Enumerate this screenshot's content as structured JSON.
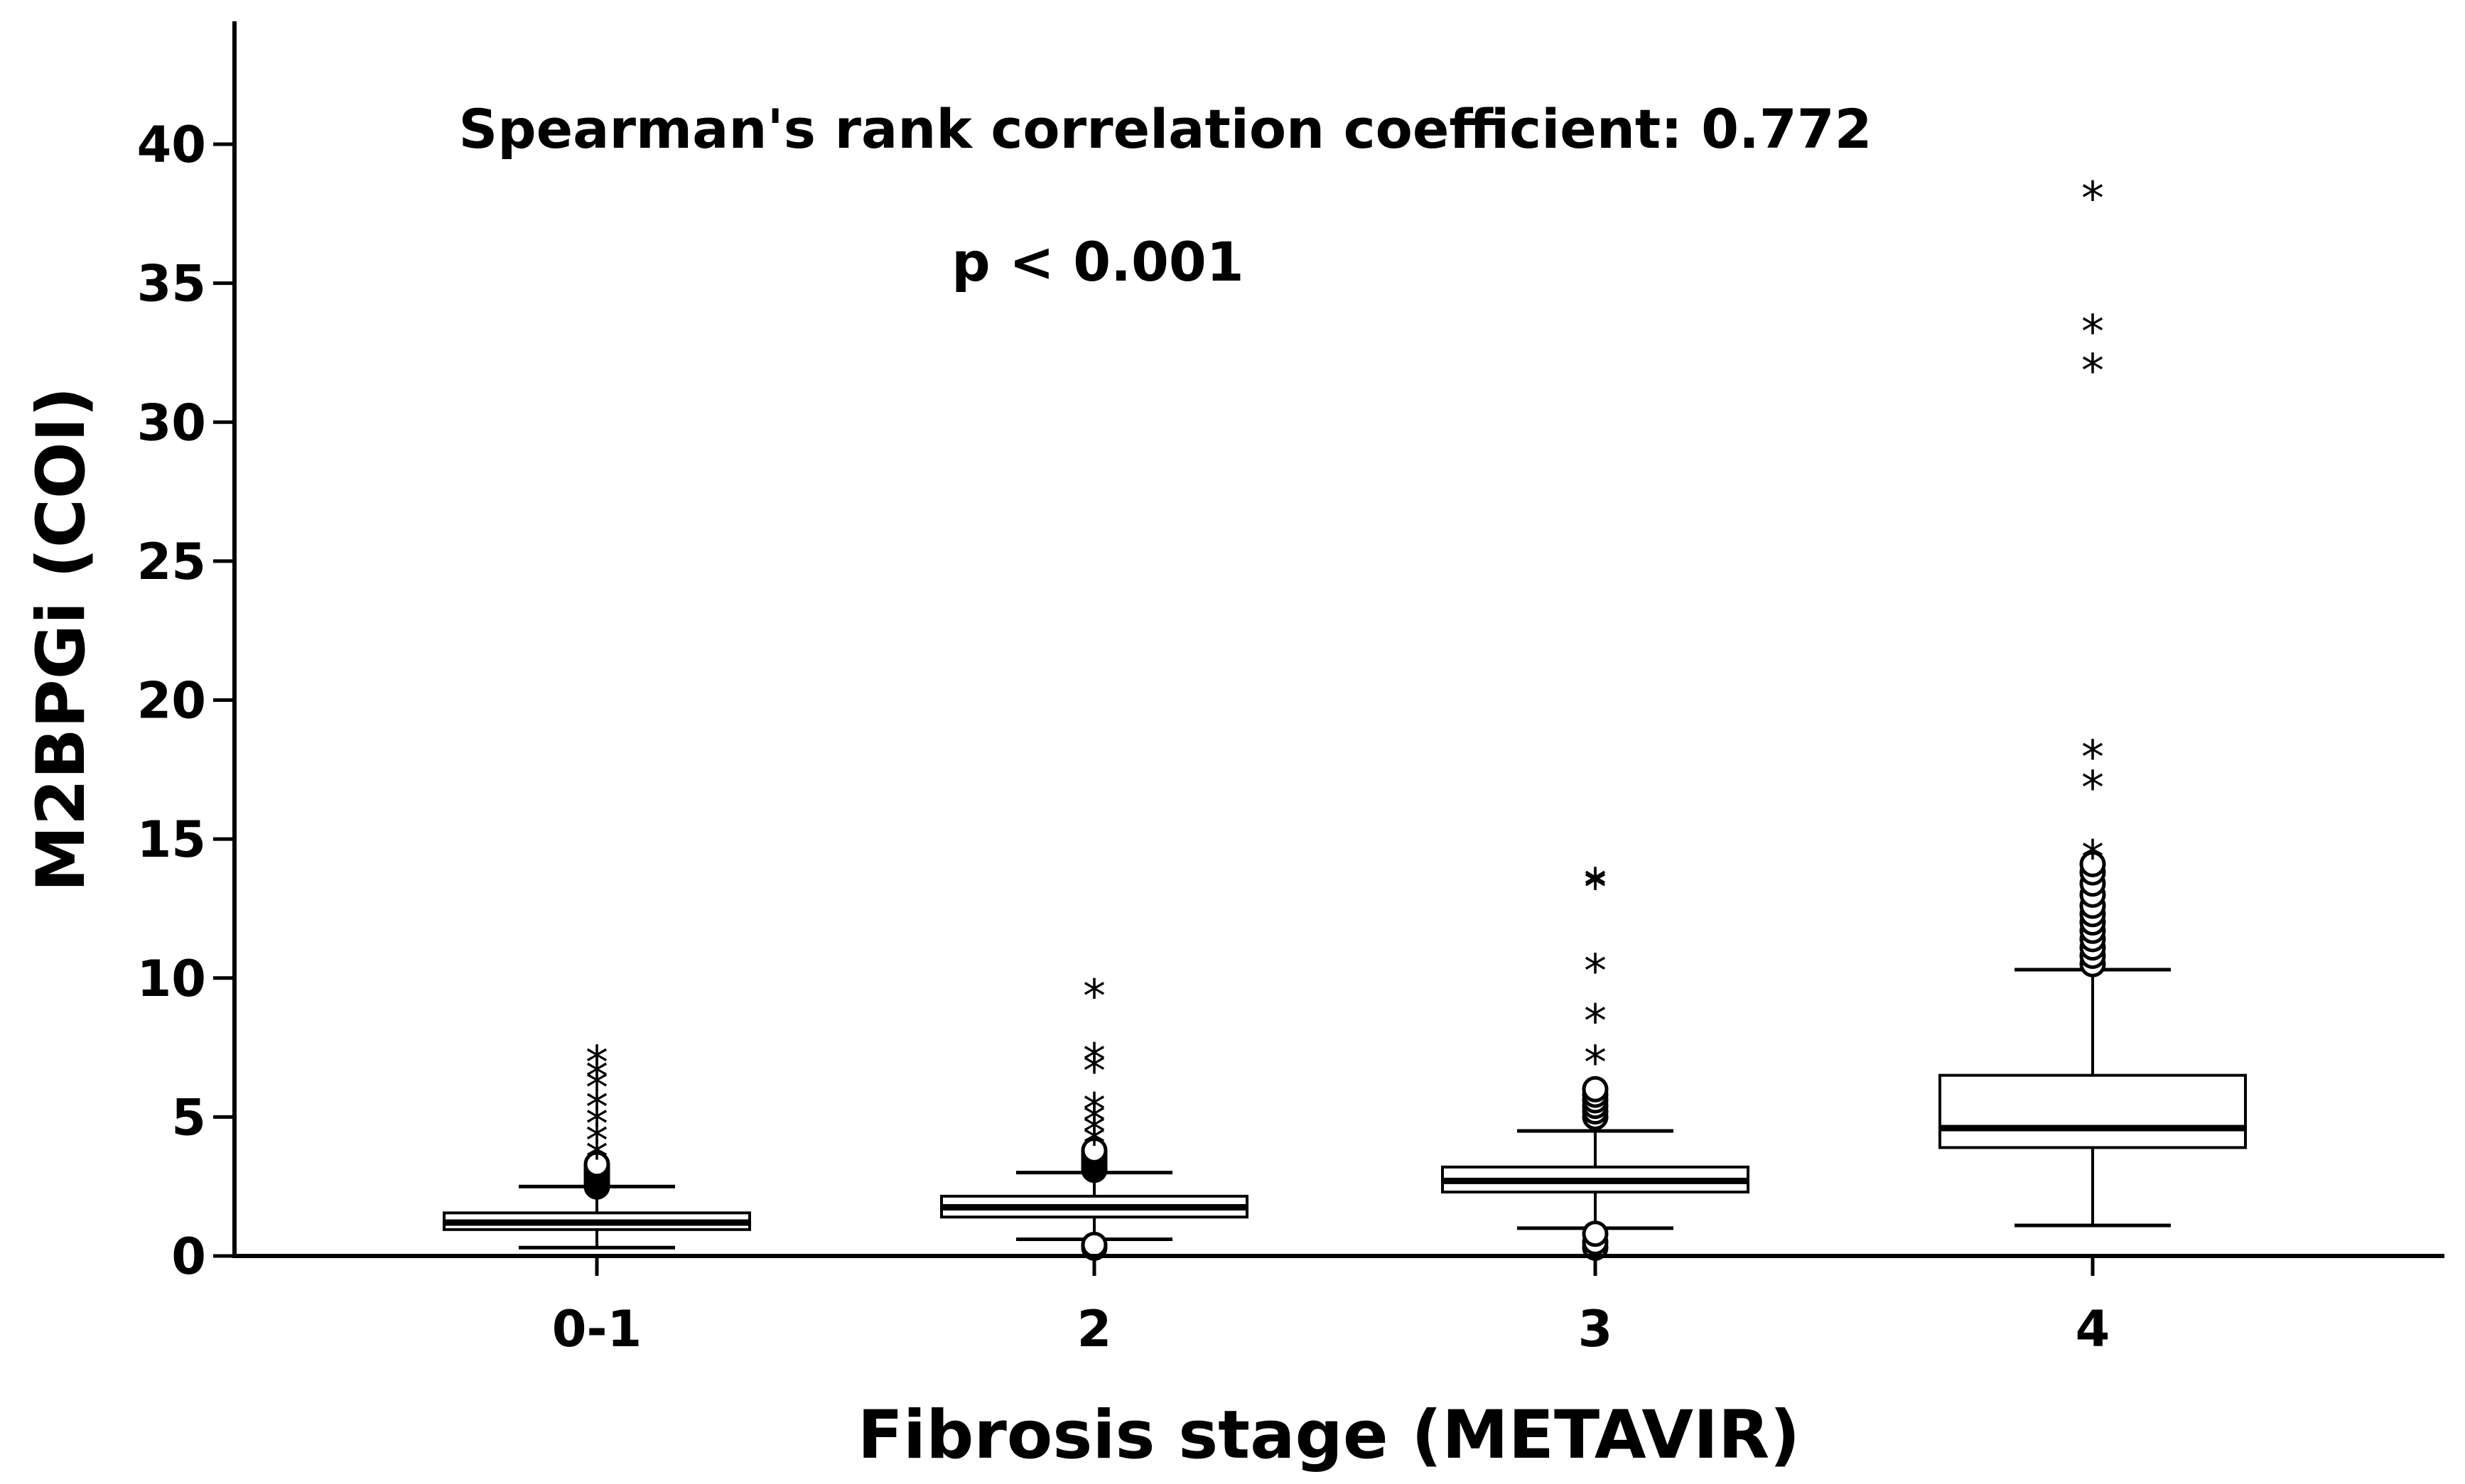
{
  "chart_data": {
    "type": "box",
    "title": "",
    "annotations": {
      "correlation": "Spearman's rank correlation coefficient: 0.772",
      "p_value": "p < 0.001"
    },
    "xlabel": "Fibrosis stage (METAVIR)",
    "ylabel": "M2BPGi (COI)",
    "ylim": [
      0,
      43
    ],
    "yticks": [
      0,
      5,
      10,
      15,
      20,
      25,
      30,
      35,
      40
    ],
    "ytick_labels": [
      "0",
      "5",
      "10",
      "15",
      "20",
      "25",
      "30",
      "35",
      "40"
    ],
    "categories": [
      "0-1",
      "2",
      "3",
      "4"
    ],
    "boxes": [
      {
        "category": "0-1",
        "whisker_low": 0.3,
        "q1": 0.95,
        "median": 1.2,
        "q3": 1.55,
        "whisker_high": 2.5,
        "outliers_circle": [
          2.5,
          2.6,
          2.7,
          2.8,
          2.9,
          3.0,
          3.1,
          3.2,
          3.3
        ],
        "outliers_star": [
          3.7,
          4.3,
          4.9,
          5.5,
          6.2,
          6.6,
          7.1
        ]
      },
      {
        "category": "2",
        "whisker_low": 0.6,
        "q1": 1.4,
        "median": 1.75,
        "q3": 2.15,
        "whisker_high": 3.0,
        "outliers_circle": [
          0.3,
          0.4,
          3.1,
          3.2,
          3.3,
          3.4,
          3.5,
          3.6,
          3.7,
          3.8
        ],
        "outliers_star": [
          4.2,
          4.6,
          5.0,
          5.4,
          6.8,
          7.2,
          9.5
        ]
      },
      {
        "category": "3",
        "whisker_low": 1.0,
        "q1": 2.3,
        "median": 2.7,
        "q3": 3.2,
        "whisker_high": 4.5,
        "outliers_circle": [
          0.3,
          0.5,
          0.8,
          5.0,
          5.2,
          5.4,
          5.6,
          5.8,
          6.0
        ],
        "outliers_star": [
          7.1,
          8.6,
          10.4,
          13.4,
          13.5
        ]
      },
      {
        "category": "4",
        "whisker_low": 1.1,
        "q1": 3.9,
        "median": 4.6,
        "q3": 6.5,
        "whisker_high": 10.3,
        "outliers_circle": [
          10.5,
          10.8,
          11.1,
          11.4,
          11.7,
          12.0,
          12.3,
          12.6,
          13.0,
          13.4,
          13.8,
          14.1
        ],
        "outliers_star": [
          14.5,
          17.0,
          18.1,
          32.0,
          33.4,
          38.2
        ]
      }
    ]
  }
}
